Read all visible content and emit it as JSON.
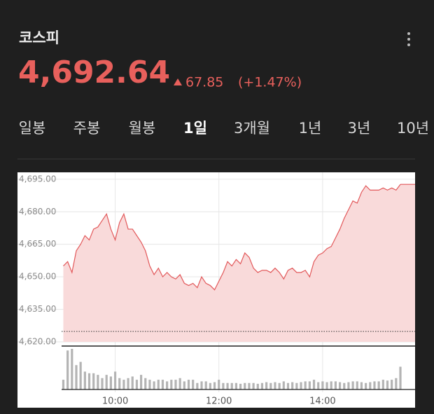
{
  "header": {
    "title": "코스피",
    "price": "4,692.64",
    "change": "67.85",
    "change_pct": "(+1.47%)"
  },
  "tabs": [
    "일봉",
    "주봉",
    "월봉",
    "1일",
    "3개월",
    "1년",
    "3년",
    "10년"
  ],
  "chart_data": {
    "type": "line",
    "color": "#e2585a",
    "fill": "#f9dada",
    "x": [
      540,
      545,
      550,
      555,
      560,
      565,
      570,
      575,
      580,
      585,
      590,
      595,
      600,
      605,
      610,
      615,
      620,
      625,
      630,
      635,
      640,
      645,
      650,
      655,
      660,
      665,
      670,
      675,
      680,
      685,
      690,
      695,
      700,
      705,
      710,
      715,
      720,
      725,
      730,
      735,
      740,
      745,
      750,
      755,
      760,
      765,
      770,
      775,
      780,
      785,
      790,
      795,
      800,
      805,
      810,
      815,
      820,
      825,
      830,
      835,
      840,
      845,
      850,
      855,
      860,
      865,
      870,
      875,
      880,
      885,
      890,
      895,
      900,
      905,
      910,
      915,
      920,
      925,
      930
    ],
    "values": [
      4655,
      4657,
      4652,
      4662,
      4665,
      4669,
      4667,
      4672,
      4673,
      4676,
      4679,
      4672,
      4667,
      4675,
      4679,
      4672,
      4672,
      4669,
      4666,
      4662,
      4655,
      4651,
      4654,
      4650,
      4652,
      4650,
      4649,
      4651,
      4647,
      4646,
      4647,
      4645,
      4650,
      4647,
      4646,
      4644,
      4648,
      4652,
      4657,
      4655,
      4658,
      4656,
      4661,
      4659,
      4654,
      4652,
      4653,
      4653,
      4652,
      4654,
      4652,
      4649,
      4653,
      4654,
      4652,
      4652,
      4653,
      4650,
      4657,
      4660,
      4661,
      4663,
      4664,
      4668,
      4672,
      4677,
      4681,
      4685,
      4684,
      4689,
      4692,
      4690,
      4690,
      4690,
      4691,
      4690,
      4691,
      4690,
      4692.64
    ],
    "volume": [
      12,
      48,
      50,
      30,
      34,
      22,
      20,
      20,
      18,
      14,
      18,
      16,
      22,
      14,
      12,
      14,
      16,
      12,
      18,
      14,
      12,
      10,
      12,
      12,
      10,
      12,
      12,
      14,
      10,
      12,
      12,
      8,
      10,
      10,
      8,
      9,
      12,
      8,
      8,
      8,
      8,
      7,
      8,
      8,
      8,
      7,
      8,
      9,
      8,
      9,
      8,
      10,
      8,
      9,
      8,
      9,
      10,
      10,
      12,
      9,
      10,
      9,
      10,
      10,
      9,
      8,
      9,
      10,
      10,
      9,
      8,
      9,
      10,
      10,
      12,
      11,
      12,
      14,
      28
    ],
    "volume_color": "#b4b4b4",
    "reference_line": 4624.79,
    "xlim": [
      538,
      947
    ],
    "xticks": [
      {
        "value": 600,
        "label": "10:00"
      },
      {
        "value": 720,
        "label": "12:00"
      },
      {
        "value": 840,
        "label": "14:00"
      }
    ],
    "ylim": [
      4620,
      4698.2
    ],
    "yticks": [
      {
        "value": 4620,
        "label": "4,620.00"
      },
      {
        "value": 4635,
        "label": "4,635.00"
      },
      {
        "value": 4650,
        "label": "4,650.00"
      },
      {
        "value": 4665,
        "label": "4,665.00"
      },
      {
        "value": 4680,
        "label": "4,680.00"
      },
      {
        "value": 4695,
        "label": "4,695.00"
      }
    ],
    "grid": true
  }
}
